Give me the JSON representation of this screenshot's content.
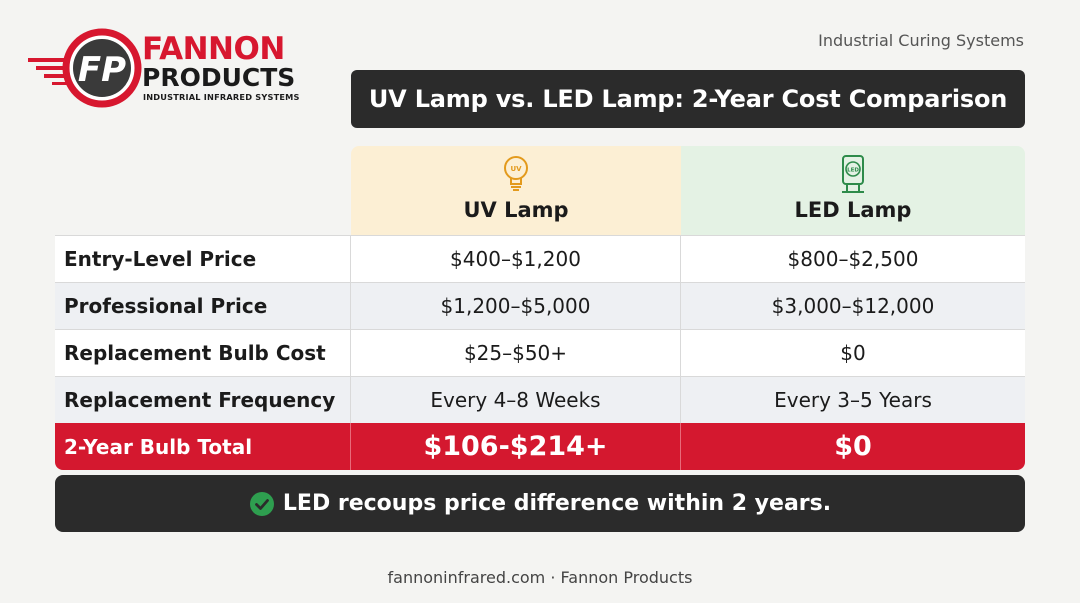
{
  "brand": {
    "logo_monogram": "FP",
    "name_line1": "FANNON",
    "name_line2": "PRODUCTS",
    "subtitle": "INDUSTRIAL INFRARED SYSTEMS",
    "red": "#d7172f",
    "dark": "#1b1b1b"
  },
  "tagline": "Industrial Curing Systems",
  "title": "UV Lamp vs. LED Lamp: 2-Year Cost Comparison",
  "columns": {
    "uv": {
      "label": "UV Lamp",
      "icon": "uv-bulb-icon",
      "icon_text": "UV",
      "color": "#fcefd4"
    },
    "led": {
      "label": "LED Lamp",
      "icon": "led-lamp-icon",
      "icon_text": "LED",
      "color": "#e4f2e4"
    }
  },
  "rows": [
    {
      "label": "Entry-Level Price",
      "uv": "$400–$1,200",
      "led": "$800–$2,500"
    },
    {
      "label": "Professional Price",
      "uv": "$1,200–$5,000",
      "led": "$3,000–$12,000"
    },
    {
      "label": "Replacement Bulb Cost",
      "uv": "$25–$50+",
      "led": "$0"
    },
    {
      "label": "Replacement Frequency",
      "uv": "Every 4–8 Weeks",
      "led": "Every 3–5 Years"
    }
  ],
  "total": {
    "label": "2-Year Bulb Total",
    "uv": "$106-$214+",
    "led": "$0",
    "color": "#d4182f"
  },
  "banner": {
    "text": "LED recoups price difference within 2 years.",
    "icon": "check-circle-icon",
    "icon_color": "#2e9e4f"
  },
  "footer": "fannoninfrared.com · Fannon Products"
}
